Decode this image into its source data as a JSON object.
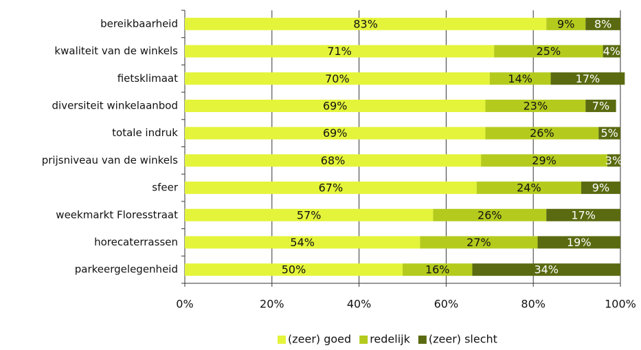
{
  "chart_data": {
    "type": "stacked_barh",
    "categories": [
      "bereikbaarheid",
      "kwaliteit van de winkels",
      "fietsklimaat",
      "diversiteit winkelaanbod",
      "totale indruk",
      "prijsniveau van de winkels",
      "sfeer",
      "weekmarkt Floresstraat",
      "horecaterrassen",
      "parkeergelegenheid"
    ],
    "series": [
      {
        "name": "(zeer) goed",
        "color": "#e4f43a",
        "values": [
          83,
          71,
          70,
          69,
          69,
          68,
          67,
          57,
          54,
          50
        ],
        "value_labels": [
          "83%",
          "71%",
          "70%",
          "69%",
          "69%",
          "68%",
          "67%",
          "57%",
          "54%",
          "50%"
        ]
      },
      {
        "name": "redelijk",
        "color": "#b4cb1e",
        "values": [
          9,
          25,
          14,
          23,
          26,
          29,
          24,
          26,
          27,
          16
        ],
        "value_labels": [
          "9%",
          "25%",
          "14%",
          "23%",
          "26%",
          "29%",
          "24%",
          "26%",
          "27%",
          "16%"
        ]
      },
      {
        "name": "(zeer) slecht",
        "color": "#5a6a10",
        "values": [
          8,
          4,
          17,
          7,
          5,
          3,
          9,
          17,
          19,
          34
        ],
        "value_labels": [
          "8%",
          "4%",
          "17%",
          "7%",
          "5%",
          "3%",
          "9%",
          "17%",
          "19%",
          "34%"
        ]
      }
    ],
    "xlim": [
      0,
      100
    ],
    "xticks": [
      {
        "value": 0,
        "label": "0%"
      },
      {
        "value": 20,
        "label": "20%"
      },
      {
        "value": 40,
        "label": "40%"
      },
      {
        "value": 60,
        "label": "60%"
      },
      {
        "value": 80,
        "label": "80%"
      },
      {
        "value": 100,
        "label": "100%"
      }
    ],
    "grid": true,
    "legend": "bottom"
  }
}
